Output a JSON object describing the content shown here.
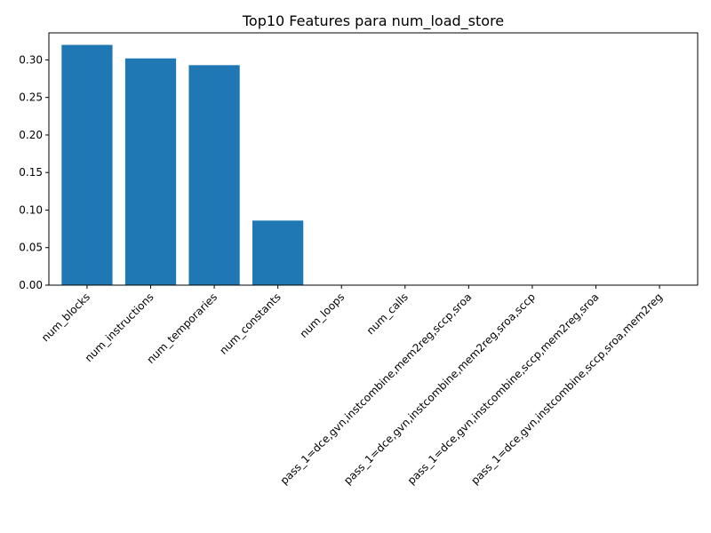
{
  "chart_data": {
    "type": "bar",
    "title": "Top10 Features para num_load_store",
    "xlabel": "",
    "ylabel": "",
    "categories": [
      "num_blocks",
      "num_instructions",
      "num_temporaries",
      "num_constants",
      "num_loops",
      "num_calls",
      "pass_1=dce,gvn,instcombine,mem2reg,sccp,sroa",
      "pass_1=dce,gvn,instcombine,mem2reg,sroa,sccp",
      "pass_1=dce,gvn,instcombine,sccp,mem2reg,sroa",
      "pass_1=dce,gvn,instcombine,sccp,sroa,mem2reg"
    ],
    "values": [
      0.32,
      0.302,
      0.293,
      0.086,
      0.0,
      0.0,
      0.0,
      0.0,
      0.0,
      0.0
    ],
    "ylim": [
      0,
      0.336
    ],
    "yticks": [
      "0.00",
      "0.05",
      "0.10",
      "0.15",
      "0.20",
      "0.25",
      "0.30"
    ],
    "ytick_values": [
      0,
      0.05,
      0.1,
      0.15,
      0.2,
      0.25,
      0.3
    ],
    "bar_color": "#1f77b4",
    "grid": false,
    "legend": "none"
  }
}
